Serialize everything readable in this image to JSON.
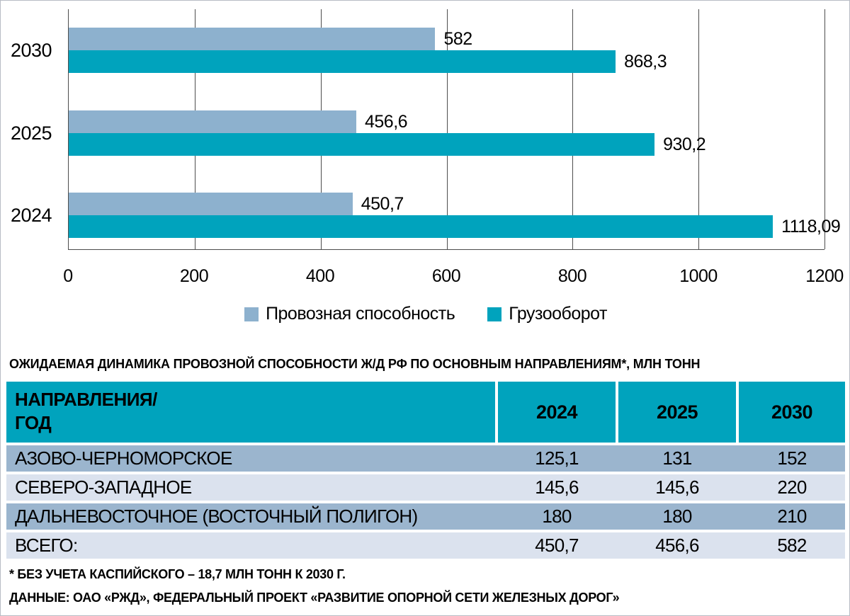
{
  "colors": {
    "series_capacity": "#8db1ce",
    "series_turnover": "#00a3bd",
    "table_header_bg": "#00a3bd",
    "row_dark": "#9bb5ce",
    "row_light": "#dbe2ee",
    "gridline": "#4d4d4d"
  },
  "chart_data": {
    "type": "bar",
    "orientation": "horizontal",
    "categories": [
      "2030",
      "2025",
      "2024"
    ],
    "series": [
      {
        "name": "Провозная способность",
        "color": "#8db1ce",
        "values": [
          582,
          456.6,
          450.7
        ],
        "labels": [
          "582",
          "456,6",
          "450,7"
        ]
      },
      {
        "name": "Грузооборот",
        "color": "#00a3bd",
        "values": [
          868.3,
          930.2,
          1118.09
        ],
        "labels": [
          "868,3",
          "930,2",
          "1118,09"
        ]
      }
    ],
    "xlim": [
      0,
      1200
    ],
    "x_ticks": [
      "0",
      "200",
      "400",
      "600",
      "800",
      "1000",
      "1200"
    ],
    "grid": true,
    "legend_position": "bottom"
  },
  "table": {
    "title": "ОЖИДАЕМАЯ ДИНАМИКА ПРОВОЗНОЙ СПОСОБНОСТИ Ж/Д РФ ПО ОСНОВНЫМ НАПРАВЛЕНИЯМ*, МЛН ТОНН",
    "header": {
      "col0_line1": "НАПРАВЛЕНИЯ/",
      "col0_line2": "ГОД",
      "years": [
        "2024",
        "2025",
        "2030"
      ]
    },
    "rows": [
      {
        "label": "АЗОВО-ЧЕРНОМОРСКОЕ",
        "values": [
          "125,1",
          "131",
          "152"
        ]
      },
      {
        "label": "СЕВЕРО-ЗАПАДНОЕ",
        "values": [
          "145,6",
          "145,6",
          "220"
        ]
      },
      {
        "label": "ДАЛЬНЕВОСТОЧНОЕ (ВОСТОЧНЫЙ ПОЛИГОН)",
        "values": [
          "180",
          "180",
          "210"
        ]
      },
      {
        "label": "ВСЕГО:",
        "values": [
          "450,7",
          "456,6",
          "582"
        ]
      }
    ],
    "footnotes": [
      "* БЕЗ УЧЕТА КАСПИЙСКОГО – 18,7 МЛН ТОНН К 2030 Г.",
      "ДАННЫЕ: ОАО «РЖД», ФЕДЕРАЛЬНЫЙ ПРОЕКТ «РАЗВИТИЕ ОПОРНОЙ СЕТИ ЖЕЛЕЗНЫХ ДОРОГ»"
    ]
  }
}
